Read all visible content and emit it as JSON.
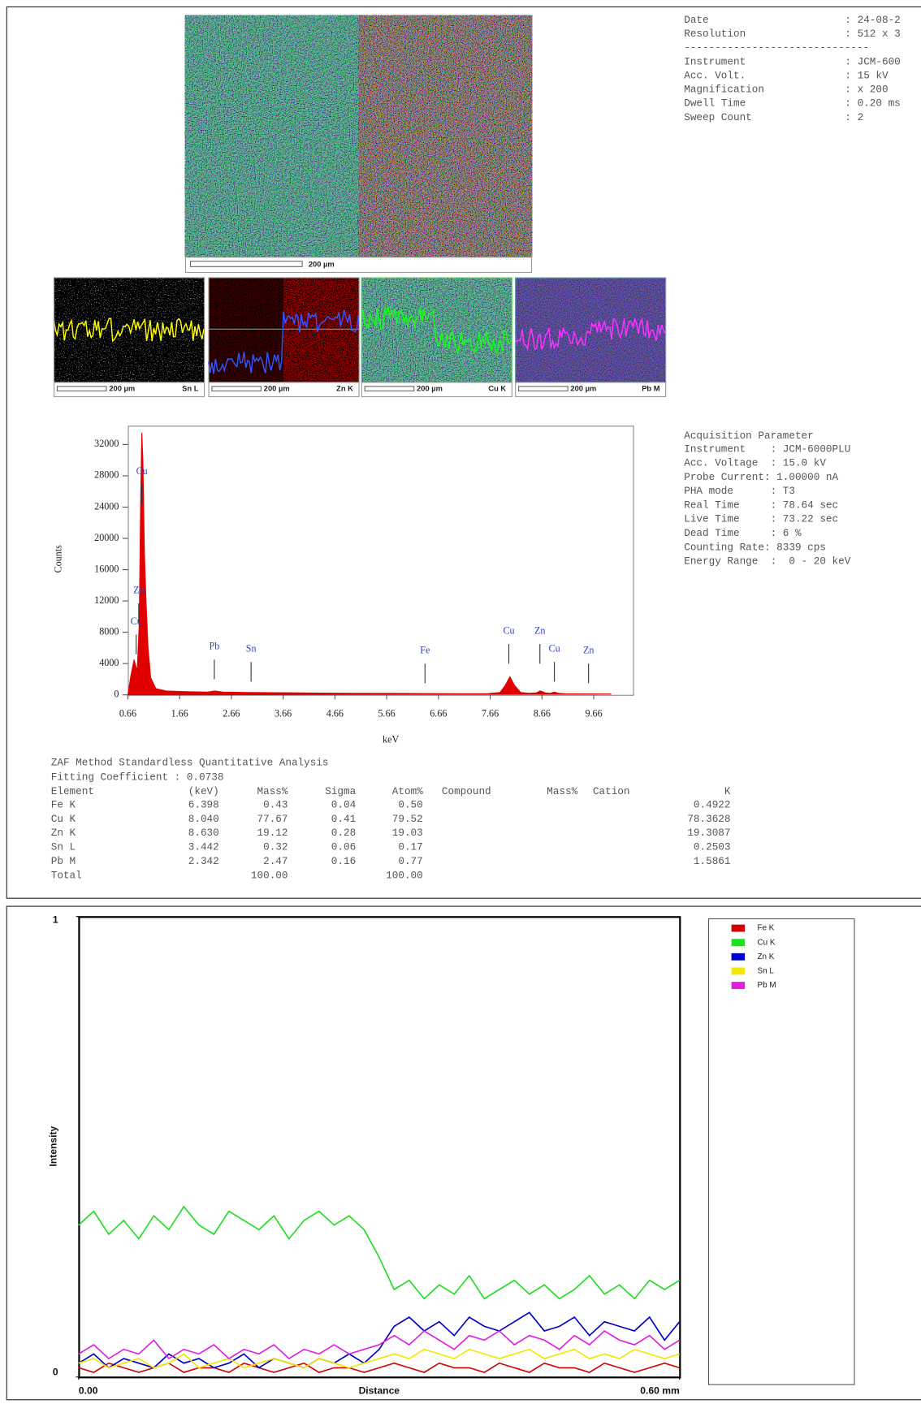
{
  "header": {
    "rows": [
      {
        "label": "Date",
        "value": ": 24-08-2"
      },
      {
        "label": "Resolution",
        "value": ": 512 x 3"
      }
    ],
    "separator": "------------------------------",
    "instrument_rows": [
      {
        "label": "Instrument",
        "value": ": JCM-600"
      },
      {
        "label": "Acc. Volt.",
        "value": ": 15 kV"
      },
      {
        "label": "Magnification",
        "value": ": x 200"
      },
      {
        "label": "Dwell Time",
        "value": ": 0.20 ms"
      },
      {
        "label": "Sweep Count",
        "value": ": 2"
      }
    ]
  },
  "main_map": {
    "scale_label": "200 µm"
  },
  "element_maps": [
    {
      "scale_label": "200 µm",
      "element": "Sn L"
    },
    {
      "scale_label": "200 µm",
      "element": "Zn K"
    },
    {
      "scale_label": "200 µm",
      "element": "Cu K"
    },
    {
      "scale_label": "200 µm",
      "element": "Pb M"
    }
  ],
  "acquisition": {
    "title": "Acquisition Parameter",
    "lines": [
      "Instrument    : JCM-6000PLU",
      "Acc. Voltage  : 15.0 kV",
      "Probe Current: 1.00000 nA",
      "PHA mode      : T3",
      "Real Time     : 78.64 sec",
      "Live Time     : 73.22 sec",
      "Dead Time     : 6 %",
      "Counting Rate: 8339 cps",
      "Energy Range  :  0 - 20 keV"
    ]
  },
  "zaf": {
    "title": "ZAF Method Standardless Quantitative Analysis",
    "fitting": "Fitting Coefficient : 0.0738",
    "columns": [
      "Element",
      "(keV)",
      "Mass%",
      "Sigma",
      "Atom%",
      "Compound",
      "Mass%",
      "Cation",
      "K"
    ],
    "rows": [
      {
        "element": "Fe K",
        "kev": "6.398",
        "mass": "0.43",
        "sigma": "0.04",
        "atom": "0.50",
        "k": "0.4922"
      },
      {
        "element": "Cu K",
        "kev": "8.040",
        "mass": "77.67",
        "sigma": "0.41",
        "atom": "79.52",
        "k": "78.3628"
      },
      {
        "element": "Zn K",
        "kev": "8.630",
        "mass": "19.12",
        "sigma": "0.28",
        "atom": "19.03",
        "k": "19.3087"
      },
      {
        "element": "Sn L",
        "kev": "3.442",
        "mass": "0.32",
        "sigma": "0.06",
        "atom": "0.17",
        "k": "0.2503"
      },
      {
        "element": "Pb M",
        "kev": "2.342",
        "mass": "2.47",
        "sigma": "0.16",
        "atom": "0.77",
        "k": "1.5861"
      }
    ],
    "total": {
      "label": "Total",
      "mass": "100.00",
      "atom": "100.00"
    }
  },
  "chart_data": [
    {
      "type": "area",
      "xlabel": "keV",
      "ylabel": "Counts",
      "color": "#e00000",
      "x": [
        0.66,
        0.72,
        0.78,
        0.84,
        0.88,
        0.91,
        0.93,
        0.95,
        0.98,
        1.01,
        1.05,
        1.1,
        1.2,
        1.4,
        1.8,
        2.2,
        2.34,
        2.5,
        3.0,
        4.0,
        5.0,
        6.0,
        7.0,
        7.6,
        7.85,
        7.95,
        8.04,
        8.13,
        8.25,
        8.4,
        8.55,
        8.63,
        8.72,
        8.82,
        8.9,
        8.98,
        9.1,
        9.5,
        10.0
      ],
      "values": [
        0,
        2500,
        4500,
        3000,
        9000,
        26000,
        33500,
        30000,
        18000,
        12000,
        6000,
        2200,
        800,
        500,
        400,
        350,
        500,
        350,
        300,
        250,
        200,
        180,
        150,
        150,
        300,
        1200,
        2300,
        1200,
        300,
        200,
        250,
        500,
        250,
        200,
        350,
        200,
        150,
        120,
        100
      ],
      "xlim": [
        0.66,
        10.42
      ],
      "ylim": [
        0,
        34400
      ],
      "xticks": [
        0.66,
        1.66,
        2.66,
        3.66,
        4.66,
        5.66,
        6.66,
        7.66,
        8.66,
        9.66
      ],
      "yticks": [
        0,
        4000,
        8000,
        12000,
        16000,
        20000,
        24000,
        28000,
        32000
      ],
      "annotations": [
        {
          "text": "Cu",
          "x": 0.93,
          "y": 28500
        },
        {
          "text": "Zn",
          "x": 0.87,
          "y": 13300
        },
        {
          "text": "Cu",
          "x": 0.82,
          "y": 9300
        },
        {
          "text": "Pb",
          "x": 2.33,
          "y": 6100
        },
        {
          "text": "Sn",
          "x": 3.04,
          "y": 5800
        },
        {
          "text": "Fe",
          "x": 6.4,
          "y": 5600
        },
        {
          "text": "Cu",
          "x": 8.02,
          "y": 8100
        },
        {
          "text": "Zn",
          "x": 8.62,
          "y": 8100
        },
        {
          "text": "Cu",
          "x": 8.9,
          "y": 5800
        },
        {
          "text": "Zn",
          "x": 9.56,
          "y": 5600
        }
      ]
    },
    {
      "type": "line",
      "xlabel": "Distance",
      "ylabel": "Intensity",
      "x": [
        0,
        0.015,
        0.03,
        0.045,
        0.06,
        0.075,
        0.09,
        0.105,
        0.12,
        0.135,
        0.15,
        0.165,
        0.18,
        0.195,
        0.21,
        0.225,
        0.24,
        0.255,
        0.27,
        0.285,
        0.3,
        0.315,
        0.33,
        0.345,
        0.36,
        0.375,
        0.39,
        0.405,
        0.42,
        0.435,
        0.45,
        0.465,
        0.48,
        0.495,
        0.51,
        0.525,
        0.54,
        0.555,
        0.57,
        0.585,
        0.6
      ],
      "xlim": [
        0,
        0.6
      ],
      "ylim": [
        0,
        1
      ],
      "xticks": [
        {
          "value": 0,
          "label": "0.00"
        },
        {
          "value": 0.6,
          "label": "0.60 mm"
        }
      ],
      "yticks": [
        0,
        1
      ],
      "legend": "right",
      "series": [
        {
          "name": "Fe K",
          "color": "#d40000",
          "values": [
            0.02,
            0.01,
            0.03,
            0.02,
            0.01,
            0.02,
            0.03,
            0.01,
            0.02,
            0.02,
            0.01,
            0.03,
            0.02,
            0.01,
            0.02,
            0.03,
            0.01,
            0.02,
            0.02,
            0.01,
            0.02,
            0.03,
            0.02,
            0.01,
            0.03,
            0.02,
            0.02,
            0.01,
            0.03,
            0.02,
            0.01,
            0.03,
            0.02,
            0.02,
            0.01,
            0.03,
            0.02,
            0.01,
            0.02,
            0.03,
            0.02
          ]
        },
        {
          "name": "Cu K",
          "color": "#22dd22",
          "values": [
            0.33,
            0.36,
            0.31,
            0.34,
            0.3,
            0.35,
            0.32,
            0.37,
            0.33,
            0.31,
            0.36,
            0.34,
            0.32,
            0.35,
            0.3,
            0.34,
            0.36,
            0.33,
            0.35,
            0.32,
            0.26,
            0.19,
            0.21,
            0.17,
            0.2,
            0.18,
            0.22,
            0.17,
            0.19,
            0.21,
            0.18,
            0.2,
            0.17,
            0.19,
            0.22,
            0.18,
            0.2,
            0.17,
            0.21,
            0.19,
            0.21
          ]
        },
        {
          "name": "Zn K",
          "color": "#0000c8",
          "values": [
            0.03,
            0.05,
            0.02,
            0.04,
            0.03,
            0.02,
            0.05,
            0.03,
            0.04,
            0.02,
            0.03,
            0.05,
            0.02,
            0.04,
            0.03,
            0.02,
            0.04,
            0.03,
            0.05,
            0.03,
            0.06,
            0.11,
            0.13,
            0.1,
            0.12,
            0.09,
            0.13,
            0.11,
            0.1,
            0.12,
            0.14,
            0.1,
            0.11,
            0.13,
            0.09,
            0.12,
            0.11,
            0.1,
            0.13,
            0.08,
            0.12
          ]
        },
        {
          "name": "Sn L",
          "color": "#f0e800",
          "values": [
            0.03,
            0.04,
            0.02,
            0.03,
            0.04,
            0.02,
            0.03,
            0.05,
            0.02,
            0.03,
            0.04,
            0.02,
            0.03,
            0.04,
            0.03,
            0.02,
            0.04,
            0.03,
            0.02,
            0.03,
            0.04,
            0.05,
            0.04,
            0.06,
            0.05,
            0.04,
            0.06,
            0.05,
            0.04,
            0.05,
            0.06,
            0.04,
            0.05,
            0.06,
            0.04,
            0.05,
            0.04,
            0.06,
            0.05,
            0.04,
            0.05
          ]
        },
        {
          "name": "Pb M",
          "color": "#e020e0",
          "values": [
            0.05,
            0.07,
            0.04,
            0.06,
            0.05,
            0.08,
            0.04,
            0.06,
            0.05,
            0.07,
            0.04,
            0.06,
            0.05,
            0.07,
            0.04,
            0.06,
            0.05,
            0.07,
            0.05,
            0.06,
            0.07,
            0.09,
            0.07,
            0.1,
            0.08,
            0.06,
            0.09,
            0.08,
            0.1,
            0.07,
            0.09,
            0.08,
            0.06,
            0.09,
            0.07,
            0.1,
            0.08,
            0.07,
            0.09,
            0.06,
            0.08
          ]
        }
      ]
    }
  ]
}
